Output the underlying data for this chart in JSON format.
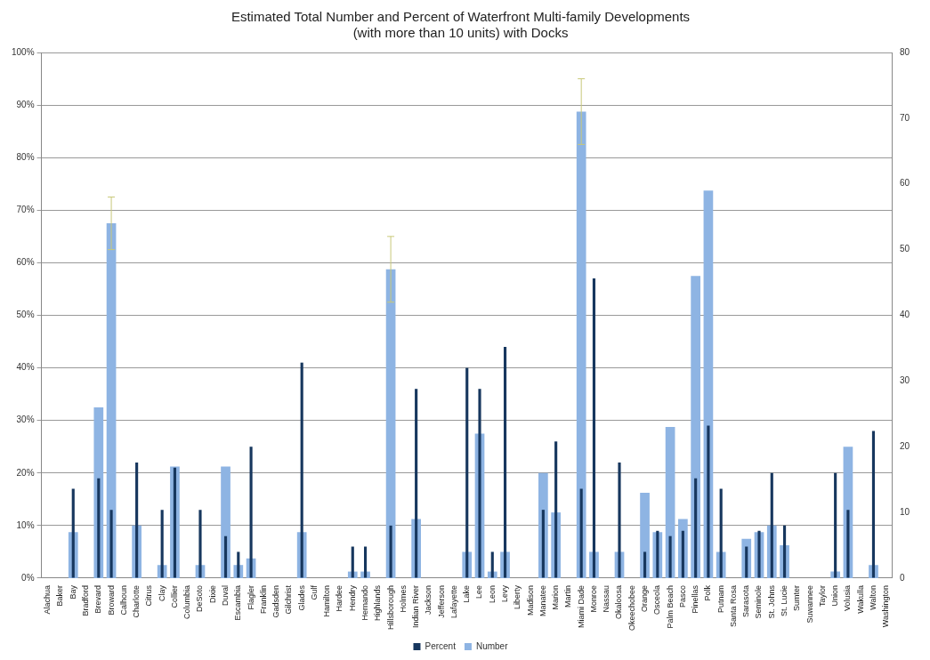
{
  "chart_data": {
    "type": "bar",
    "title": "Estimated Total Number and Percent of Waterfront Multi-family Developments\n(with more than 10 units) with Docks",
    "categories": [
      "Alachua",
      "Baker",
      "Bay",
      "Bradford",
      "Brevard",
      "Broward",
      "Calhoun",
      "Charlotte",
      "Citrus",
      "Clay",
      "Collier",
      "Columbia",
      "DeSoto",
      "Dixie",
      "Duval",
      "Escambia",
      "Flagler",
      "Franklin",
      "Gadsden",
      "Gilchrist",
      "Glades",
      "Gulf",
      "Hamilton",
      "Hardee",
      "Hendry",
      "Hernando",
      "Highlands",
      "Hillsborough",
      "Holmes",
      "Indian River",
      "Jackson",
      "Jefferson",
      "Lafayette",
      "Lake",
      "Lee",
      "Leon",
      "Levy",
      "Liberty",
      "Madison",
      "Manatee",
      "Marion",
      "Martin",
      "Miami Dade",
      "Monroe",
      "Nassau",
      "Okaloosa",
      "Okeechobee",
      "Orange",
      "Osceola",
      "Palm Beach",
      "Pasco",
      "Pinellas",
      "Polk",
      "Putnam",
      "Santa Rosa",
      "Sarasota",
      "Seminole",
      "St. Johns",
      "St. Lucie",
      "Sumter",
      "Suwannee",
      "Taylor",
      "Union",
      "Volusia",
      "Wakulla",
      "Walton",
      "Washington"
    ],
    "series": [
      {
        "name": "Number",
        "color": "#8eb4e3",
        "axis": "y2",
        "values": [
          0,
          0,
          7,
          0,
          26,
          54,
          0,
          8,
          0,
          2,
          17,
          0,
          2,
          0,
          17,
          2,
          3,
          0,
          0,
          0,
          7,
          0,
          0,
          0,
          1,
          1,
          0,
          47,
          0,
          9,
          0,
          0,
          0,
          4,
          22,
          1,
          4,
          0,
          0,
          16,
          10,
          0,
          71,
          4,
          0,
          4,
          0,
          13,
          7,
          23,
          9,
          46,
          59,
          4,
          0,
          6,
          7,
          8,
          5,
          0,
          0,
          0,
          1,
          20,
          0,
          2,
          0
        ],
        "errors": [
          null,
          null,
          null,
          null,
          null,
          4,
          null,
          null,
          null,
          null,
          null,
          null,
          null,
          null,
          null,
          null,
          null,
          null,
          null,
          null,
          null,
          null,
          null,
          null,
          null,
          null,
          null,
          5,
          null,
          null,
          null,
          null,
          null,
          null,
          null,
          null,
          null,
          null,
          null,
          null,
          null,
          null,
          5,
          null,
          null,
          null,
          null,
          null,
          null,
          null,
          null,
          null,
          null,
          null,
          null,
          null,
          null,
          null,
          null,
          null,
          null,
          null,
          null,
          null,
          null,
          null,
          null
        ]
      },
      {
        "name": "Percent",
        "color": "#17375e",
        "values": [
          0,
          0,
          17,
          0,
          19,
          13,
          0,
          22,
          0,
          13,
          21,
          0,
          13,
          0,
          8,
          5,
          25,
          0,
          0,
          0,
          41,
          0,
          0,
          0,
          6,
          6,
          0,
          10,
          0,
          36,
          0,
          0,
          0,
          40,
          36,
          5,
          44,
          0,
          0,
          13,
          26,
          0,
          17,
          57,
          0,
          22,
          0,
          5,
          9,
          8,
          9,
          19,
          29,
          17,
          0,
          6,
          9,
          20,
          10,
          0,
          0,
          0,
          20,
          13,
          0,
          28,
          0
        ]
      }
    ],
    "ylim": [
      0,
      100
    ],
    "yticks": [
      {
        "value": 0,
        "label": "0%"
      },
      {
        "value": 10,
        "label": "10%"
      },
      {
        "value": 20,
        "label": "20%"
      },
      {
        "value": 30,
        "label": "30%"
      },
      {
        "value": 40,
        "label": "40%"
      },
      {
        "value": 50,
        "label": "50%"
      },
      {
        "value": 60,
        "label": "60%"
      },
      {
        "value": 70,
        "label": "70%"
      },
      {
        "value": 80,
        "label": "80%"
      },
      {
        "value": 90,
        "label": "90%"
      },
      {
        "value": 100,
        "label": "100%"
      }
    ],
    "y2lim": [
      0,
      80
    ],
    "y2ticks": [
      0,
      10,
      20,
      30,
      40,
      50,
      60,
      70,
      80
    ],
    "grid": "y",
    "legend": "bottom"
  }
}
